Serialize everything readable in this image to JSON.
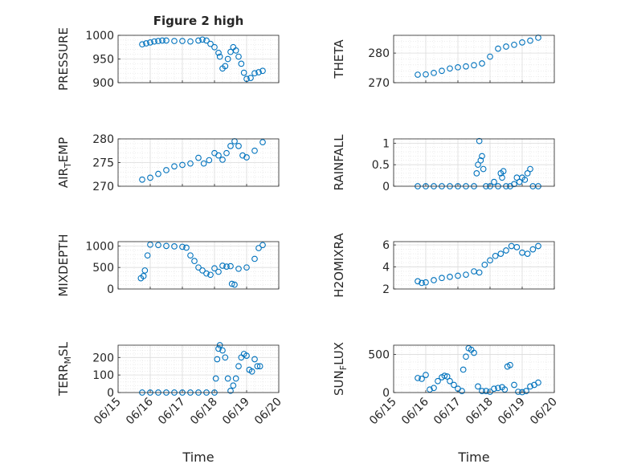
{
  "figure": {
    "title": "Figure 2 high"
  },
  "chart_data": [
    {
      "type": "scatter",
      "title": "Figure 2 high",
      "xlabel": "",
      "ylabel": "PRESSURE",
      "ylim": [
        900,
        1000
      ],
      "yticks": [
        900,
        950,
        1000
      ],
      "xlim": [
        "06/15",
        "06/20"
      ],
      "grid": true,
      "x": [
        "06/15 18:00",
        "06/15 21:00",
        "06/16 00:00",
        "06/16 03:00",
        "06/16 06:00",
        "06/16 09:00",
        "06/16 12:00",
        "06/16 18:00",
        "06/17 00:00",
        "06/17 06:00",
        "06/17 12:00",
        "06/17 15:00",
        "06/17 18:00",
        "06/17 21:00",
        "06/18 00:00",
        "06/18 03:00",
        "06/18 04:00",
        "06/18 06:00",
        "06/18 08:00",
        "06/18 10:00",
        "06/18 12:00",
        "06/18 14:00",
        "06/18 16:00",
        "06/18 18:00",
        "06/18 20:00",
        "06/18 22:00",
        "06/19 00:00",
        "06/19 03:00",
        "06/19 06:00",
        "06/19 09:00",
        "06/19 12:00"
      ],
      "y": [
        981,
        983,
        985,
        987,
        988,
        989,
        989,
        988,
        988,
        987,
        989,
        991,
        989,
        982,
        975,
        963,
        955,
        930,
        935,
        950,
        965,
        975,
        968,
        955,
        940,
        921,
        908,
        910,
        920,
        922,
        925
      ]
    },
    {
      "type": "scatter",
      "xlabel": "",
      "ylabel": "THETA",
      "ylim": [
        270,
        286
      ],
      "yticks": [
        270,
        280
      ],
      "xlim": [
        "06/15",
        "06/20"
      ],
      "grid": true,
      "x": [
        "06/15 18:00",
        "06/16 00:00",
        "06/16 06:00",
        "06/16 12:00",
        "06/16 18:00",
        "06/17 00:00",
        "06/17 06:00",
        "06/17 12:00",
        "06/17 18:00",
        "06/18 00:00",
        "06/18 06:00",
        "06/18 12:00",
        "06/18 18:00",
        "06/19 00:00",
        "06/19 06:00",
        "06/19 12:00"
      ],
      "y": [
        272.7,
        272.8,
        273.3,
        274.0,
        274.8,
        275.2,
        275.5,
        275.9,
        276.5,
        278.8,
        281.5,
        282.2,
        282.8,
        283.6,
        284.2,
        285.2
      ]
    },
    {
      "type": "scatter",
      "xlabel": "",
      "ylabel": "AIR_TEMP",
      "ylim": [
        270,
        280
      ],
      "yticks": [
        270,
        275,
        280
      ],
      "xlim": [
        "06/15",
        "06/20"
      ],
      "grid": true,
      "x": [
        "06/15 18:00",
        "06/16 00:00",
        "06/16 06:00",
        "06/16 12:00",
        "06/16 18:00",
        "06/17 00:00",
        "06/17 06:00",
        "06/17 12:00",
        "06/17 16:00",
        "06/17 20:00",
        "06/18 00:00",
        "06/18 03:00",
        "06/18 06:00",
        "06/18 09:00",
        "06/18 12:00",
        "06/18 15:00",
        "06/18 18:00",
        "06/18 21:00",
        "06/19 00:00",
        "06/19 06:00",
        "06/19 12:00"
      ],
      "y": [
        271.4,
        271.8,
        272.6,
        273.4,
        274.2,
        274.5,
        274.8,
        276.0,
        274.8,
        275.5,
        277.0,
        276.5,
        275.6,
        277.0,
        278.5,
        279.5,
        278.5,
        276.5,
        276.1,
        277.5,
        279.3
      ]
    },
    {
      "type": "scatter",
      "xlabel": "",
      "ylabel": "RAINFALL",
      "ylim": [
        0,
        1.1
      ],
      "yticks": [
        0,
        0.5,
        1
      ],
      "xlim": [
        "06/15",
        "06/20"
      ],
      "grid": true,
      "x": [
        "06/15 18:00",
        "06/16 00:00",
        "06/16 06:00",
        "06/16 12:00",
        "06/16 18:00",
        "06/17 00:00",
        "06/17 06:00",
        "06/17 12:00",
        "06/17 14:00",
        "06/17 15:00",
        "06/17 16:00",
        "06/17 17:00",
        "06/17 18:00",
        "06/17 19:00",
        "06/17 21:00",
        "06/18 00:00",
        "06/18 03:00",
        "06/18 06:00",
        "06/18 08:00",
        "06/18 09:00",
        "06/18 10:00",
        "06/18 12:00",
        "06/18 15:00",
        "06/18 18:00",
        "06/18 20:00",
        "06/18 22:00",
        "06/19 00:00",
        "06/19 02:00",
        "06/19 04:00",
        "06/19 06:00",
        "06/19 08:00",
        "06/19 12:00"
      ],
      "y": [
        0,
        0,
        0,
        0,
        0,
        0,
        0,
        0,
        0.3,
        0.5,
        1.05,
        0.6,
        0.7,
        0.4,
        0,
        0,
        0.1,
        0,
        0.3,
        0.2,
        0.35,
        0,
        0,
        0.05,
        0.2,
        0.1,
        0.2,
        0.15,
        0.3,
        0.4,
        0,
        0
      ]
    },
    {
      "type": "scatter",
      "xlabel": "",
      "ylabel": "MIXDEPTH",
      "ylim": [
        0,
        1100
      ],
      "yticks": [
        0,
        500,
        1000
      ],
      "xlim": [
        "06/15",
        "06/20"
      ],
      "grid": true,
      "x": [
        "06/15 17:00",
        "06/15 19:00",
        "06/15 20:00",
        "06/15 22:00",
        "06/16 00:00",
        "06/16 06:00",
        "06/16 12:00",
        "06/16 18:00",
        "06/17 00:00",
        "06/17 03:00",
        "06/17 06:00",
        "06/17 09:00",
        "06/17 12:00",
        "06/17 15:00",
        "06/17 18:00",
        "06/17 21:00",
        "06/18 00:00",
        "06/18 03:00",
        "06/18 06:00",
        "06/18 09:00",
        "06/18 12:00",
        "06/18 13:00",
        "06/18 15:00",
        "06/18 18:00",
        "06/19 00:00",
        "06/19 06:00",
        "06/19 09:00",
        "06/19 12:00"
      ],
      "y": [
        250,
        300,
        430,
        780,
        1030,
        1020,
        1000,
        990,
        980,
        960,
        780,
        650,
        500,
        430,
        360,
        330,
        480,
        400,
        540,
        520,
        530,
        120,
        100,
        470,
        500,
        700,
        950,
        1020
      ]
    },
    {
      "type": "scatter",
      "xlabel": "",
      "ylabel": "H2OMIXRA",
      "ylim": [
        2,
        6.3
      ],
      "yticks": [
        2,
        4,
        6
      ],
      "xlim": [
        "06/15",
        "06/20"
      ],
      "grid": true,
      "x": [
        "06/15 18:00",
        "06/15 21:00",
        "06/16 00:00",
        "06/16 06:00",
        "06/16 12:00",
        "06/16 18:00",
        "06/17 00:00",
        "06/17 06:00",
        "06/17 12:00",
        "06/17 16:00",
        "06/17 20:00",
        "06/18 00:00",
        "06/18 04:00",
        "06/18 08:00",
        "06/18 12:00",
        "06/18 16:00",
        "06/18 20:00",
        "06/19 00:00",
        "06/19 04:00",
        "06/19 08:00",
        "06/19 12:00"
      ],
      "y": [
        2.7,
        2.55,
        2.6,
        2.8,
        3.0,
        3.1,
        3.2,
        3.3,
        3.6,
        3.5,
        4.2,
        4.6,
        5.0,
        5.2,
        5.5,
        5.9,
        5.8,
        5.3,
        5.2,
        5.6,
        5.9
      ]
    },
    {
      "type": "scatter",
      "xlabel": "Time",
      "ylabel": "TERR_MSL",
      "ylim": [
        0,
        270
      ],
      "yticks": [
        0,
        100,
        200
      ],
      "xlim": [
        "06/15",
        "06/20"
      ],
      "grid": true,
      "x": [
        "06/15 18:00",
        "06/16 00:00",
        "06/16 06:00",
        "06/16 12:00",
        "06/16 18:00",
        "06/17 00:00",
        "06/17 06:00",
        "06/17 12:00",
        "06/17 18:00",
        "06/18 00:00",
        "06/18 01:00",
        "06/18 02:00",
        "06/18 03:00",
        "06/18 04:00",
        "06/18 06:00",
        "06/18 08:00",
        "06/18 10:00",
        "06/18 12:00",
        "06/18 14:00",
        "06/18 16:00",
        "06/18 18:00",
        "06/18 20:00",
        "06/18 22:00",
        "06/19 00:00",
        "06/19 02:00",
        "06/19 04:00",
        "06/19 06:00",
        "06/19 08:00",
        "06/19 10:00"
      ],
      "y": [
        0,
        0,
        0,
        0,
        0,
        0,
        0,
        0,
        0,
        0,
        80,
        190,
        250,
        270,
        240,
        200,
        80,
        10,
        40,
        80,
        150,
        200,
        220,
        210,
        130,
        120,
        190,
        150,
        150
      ]
    },
    {
      "type": "scatter",
      "xlabel": "Time",
      "ylabel": "SUN_FLUX",
      "ylim": [
        0,
        620
      ],
      "yticks": [
        0,
        500
      ],
      "xlim": [
        "06/15",
        "06/20"
      ],
      "grid": true,
      "x": [
        "06/15 18:00",
        "06/15 21:00",
        "06/16 00:00",
        "06/16 03:00",
        "06/16 06:00",
        "06/16 09:00",
        "06/16 12:00",
        "06/16 14:00",
        "06/16 16:00",
        "06/16 18:00",
        "06/16 21:00",
        "06/17 00:00",
        "06/17 03:00",
        "06/17 04:00",
        "06/17 06:00",
        "06/17 08:00",
        "06/17 10:00",
        "06/17 12:00",
        "06/17 15:00",
        "06/17 18:00",
        "06/17 21:00",
        "06/18 00:00",
        "06/18 03:00",
        "06/18 06:00",
        "06/18 09:00",
        "06/18 11:00",
        "06/18 13:00",
        "06/18 15:00",
        "06/18 18:00",
        "06/18 21:00",
        "06/19 00:00",
        "06/19 03:00",
        "06/19 06:00",
        "06/19 09:00",
        "06/19 12:00"
      ],
      "y": [
        190,
        180,
        230,
        40,
        60,
        150,
        200,
        220,
        210,
        150,
        100,
        50,
        20,
        300,
        470,
        580,
        560,
        520,
        80,
        20,
        20,
        10,
        50,
        60,
        70,
        40,
        340,
        360,
        100,
        10,
        5,
        20,
        80,
        100,
        130
      ]
    }
  ]
}
